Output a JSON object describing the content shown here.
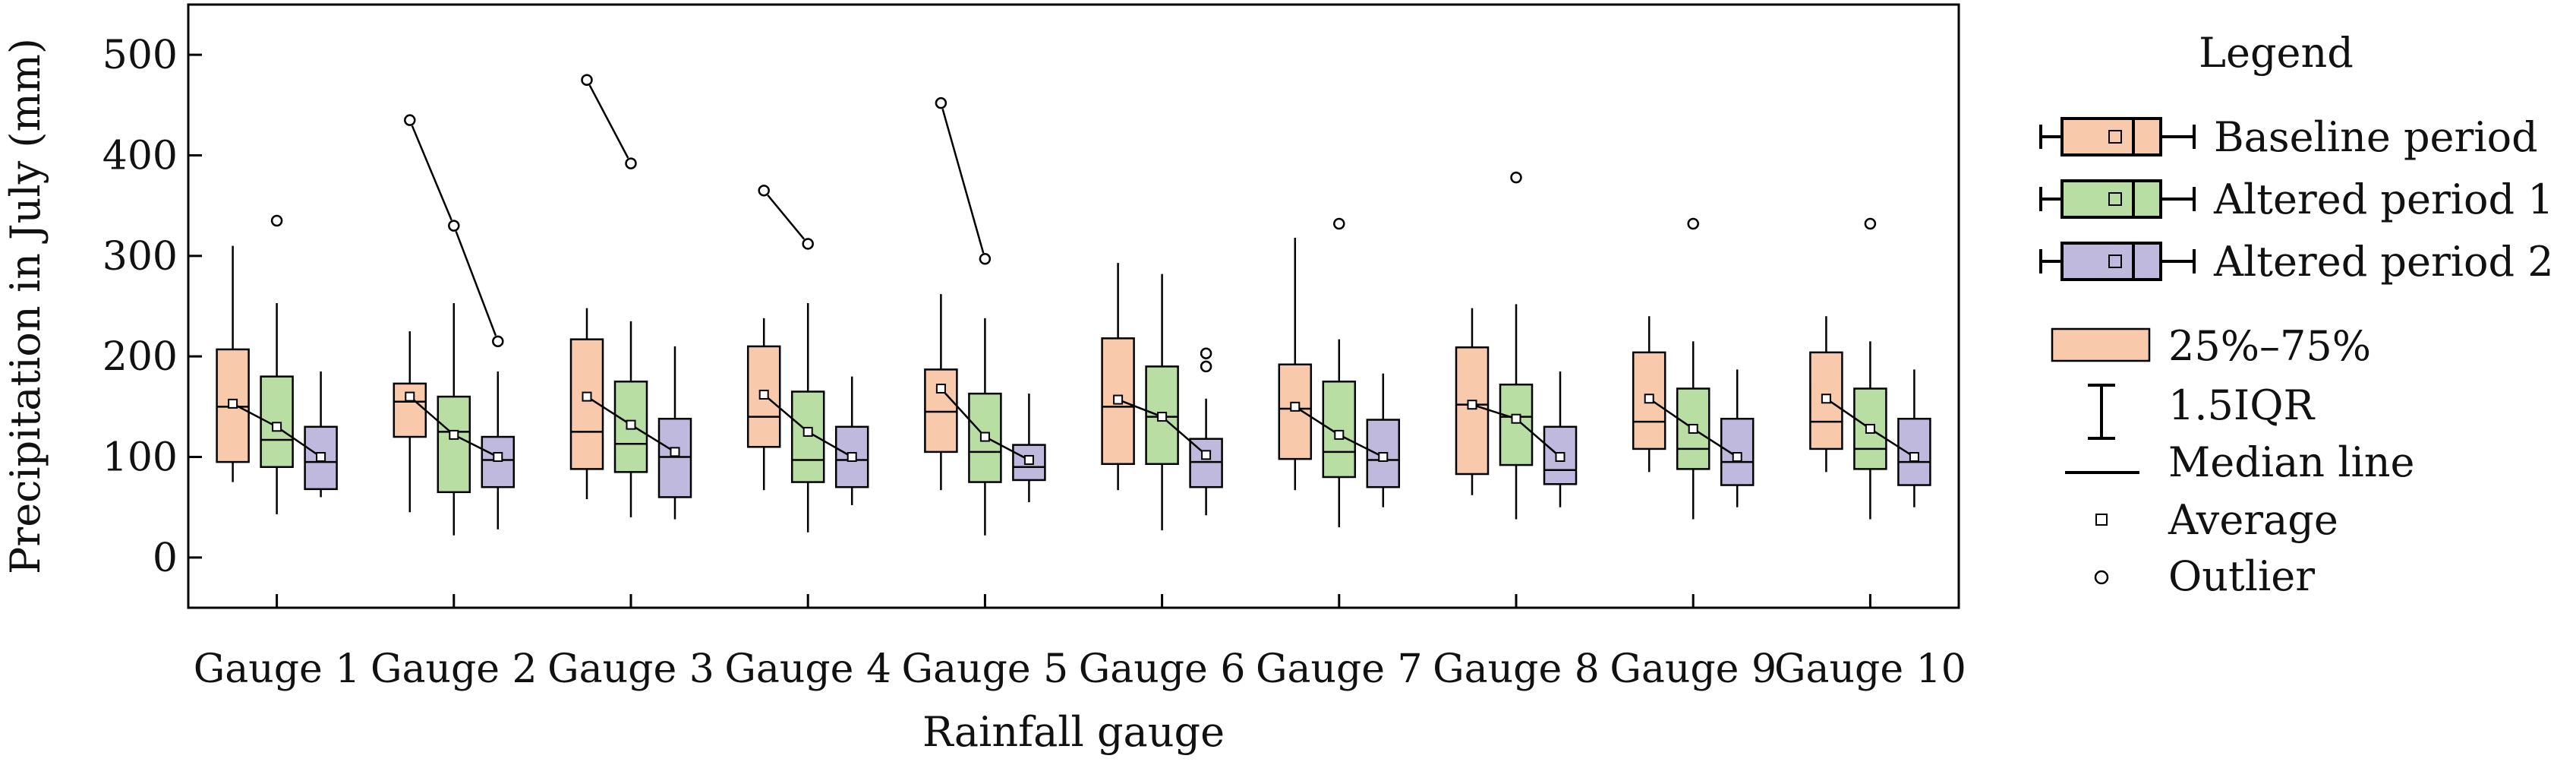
{
  "chart_data": {
    "type": "box",
    "xlabel": "Rainfall gauge",
    "ylabel": "Precipitation in July (mm)",
    "ylim": [
      -50,
      550
    ],
    "yticks": [
      0,
      100,
      200,
      300,
      400,
      500
    ],
    "categories": [
      "Gauge 1",
      "Gauge 2",
      "Gauge 3",
      "Gauge 4",
      "Gauge 5",
      "Gauge 6",
      "Gauge 7",
      "Gauge 8",
      "Gauge 9",
      "Gauge 10"
    ],
    "series": [
      {
        "name": "Baseline period",
        "color": "#f9c9ab",
        "stats": [
          {
            "min": 75,
            "q1": 95,
            "median": 150,
            "q3": 207,
            "max": 310,
            "mean": 153,
            "outliers": []
          },
          {
            "min": 45,
            "q1": 120,
            "median": 155,
            "q3": 173,
            "max": 225,
            "mean": 160,
            "outliers": [
              435
            ]
          },
          {
            "min": 58,
            "q1": 88,
            "median": 125,
            "q3": 217,
            "max": 248,
            "mean": 160,
            "outliers": [
              475
            ]
          },
          {
            "min": 67,
            "q1": 110,
            "median": 140,
            "q3": 210,
            "max": 238,
            "mean": 162,
            "outliers": [
              365
            ]
          },
          {
            "min": 67,
            "q1": 105,
            "median": 145,
            "q3": 187,
            "max": 262,
            "mean": 168,
            "outliers": [
              452
            ]
          },
          {
            "min": 67,
            "q1": 93,
            "median": 150,
            "q3": 218,
            "max": 293,
            "mean": 157,
            "outliers": []
          },
          {
            "min": 67,
            "q1": 98,
            "median": 148,
            "q3": 192,
            "max": 318,
            "mean": 150,
            "outliers": []
          },
          {
            "min": 62,
            "q1": 83,
            "median": 152,
            "q3": 209,
            "max": 248,
            "mean": 152,
            "outliers": []
          },
          {
            "min": 85,
            "q1": 108,
            "median": 135,
            "q3": 204,
            "max": 240,
            "mean": 158,
            "outliers": []
          },
          {
            "min": 85,
            "q1": 108,
            "median": 135,
            "q3": 204,
            "max": 240,
            "mean": 158,
            "outliers": []
          }
        ]
      },
      {
        "name": "Altered period 1",
        "color": "#b9dea4",
        "stats": [
          {
            "min": 43,
            "q1": 90,
            "median": 117,
            "q3": 180,
            "max": 253,
            "mean": 130,
            "outliers": [
              335
            ]
          },
          {
            "min": 22,
            "q1": 65,
            "median": 125,
            "q3": 160,
            "max": 253,
            "mean": 122,
            "outliers": [
              330
            ]
          },
          {
            "min": 40,
            "q1": 85,
            "median": 113,
            "q3": 175,
            "max": 235,
            "mean": 132,
            "outliers": [
              392
            ]
          },
          {
            "min": 25,
            "q1": 75,
            "median": 97,
            "q3": 165,
            "max": 253,
            "mean": 125,
            "outliers": [
              312
            ]
          },
          {
            "min": 22,
            "q1": 75,
            "median": 105,
            "q3": 163,
            "max": 238,
            "mean": 120,
            "outliers": [
              297
            ]
          },
          {
            "min": 27,
            "q1": 93,
            "median": 140,
            "q3": 190,
            "max": 282,
            "mean": 140,
            "outliers": []
          },
          {
            "min": 30,
            "q1": 80,
            "median": 105,
            "q3": 175,
            "max": 217,
            "mean": 122,
            "outliers": [
              332
            ]
          },
          {
            "min": 38,
            "q1": 92,
            "median": 140,
            "q3": 172,
            "max": 252,
            "mean": 138,
            "outliers": [
              378
            ]
          },
          {
            "min": 38,
            "q1": 88,
            "median": 108,
            "q3": 168,
            "max": 215,
            "mean": 128,
            "outliers": [
              332
            ]
          },
          {
            "min": 38,
            "q1": 88,
            "median": 108,
            "q3": 168,
            "max": 215,
            "mean": 128,
            "outliers": [
              332
            ]
          }
        ]
      },
      {
        "name": "Altered period 2",
        "color": "#bfb9dd",
        "stats": [
          {
            "min": 60,
            "q1": 68,
            "median": 95,
            "q3": 130,
            "max": 185,
            "mean": 100,
            "outliers": []
          },
          {
            "min": 28,
            "q1": 70,
            "median": 97,
            "q3": 120,
            "max": 185,
            "mean": 100,
            "outliers": [
              215
            ]
          },
          {
            "min": 38,
            "q1": 60,
            "median": 100,
            "q3": 138,
            "max": 210,
            "mean": 105,
            "outliers": []
          },
          {
            "min": 52,
            "q1": 70,
            "median": 97,
            "q3": 130,
            "max": 180,
            "mean": 100,
            "outliers": []
          },
          {
            "min": 55,
            "q1": 77,
            "median": 90,
            "q3": 112,
            "max": 163,
            "mean": 97,
            "outliers": []
          },
          {
            "min": 42,
            "q1": 70,
            "median": 95,
            "q3": 118,
            "max": 158,
            "mean": 102,
            "outliers": [
              190,
              203
            ]
          },
          {
            "min": 50,
            "q1": 70,
            "median": 97,
            "q3": 137,
            "max": 183,
            "mean": 100,
            "outliers": []
          },
          {
            "min": 50,
            "q1": 73,
            "median": 87,
            "q3": 130,
            "max": 185,
            "mean": 100,
            "outliers": []
          },
          {
            "min": 50,
            "q1": 72,
            "median": 95,
            "q3": 138,
            "max": 187,
            "mean": 100,
            "outliers": []
          },
          {
            "min": 50,
            "q1": 72,
            "median": 95,
            "q3": 138,
            "max": 187,
            "mean": 100,
            "outliers": []
          }
        ]
      }
    ],
    "legend": {
      "title": "Legend",
      "position": "right",
      "series_entries": [
        "Baseline period",
        "Altered period 1",
        "Altered period 2"
      ],
      "key_entries": [
        "25%–75%",
        "1.5IQR",
        "Median line",
        "Average",
        "Outlier"
      ]
    },
    "grid": false
  }
}
